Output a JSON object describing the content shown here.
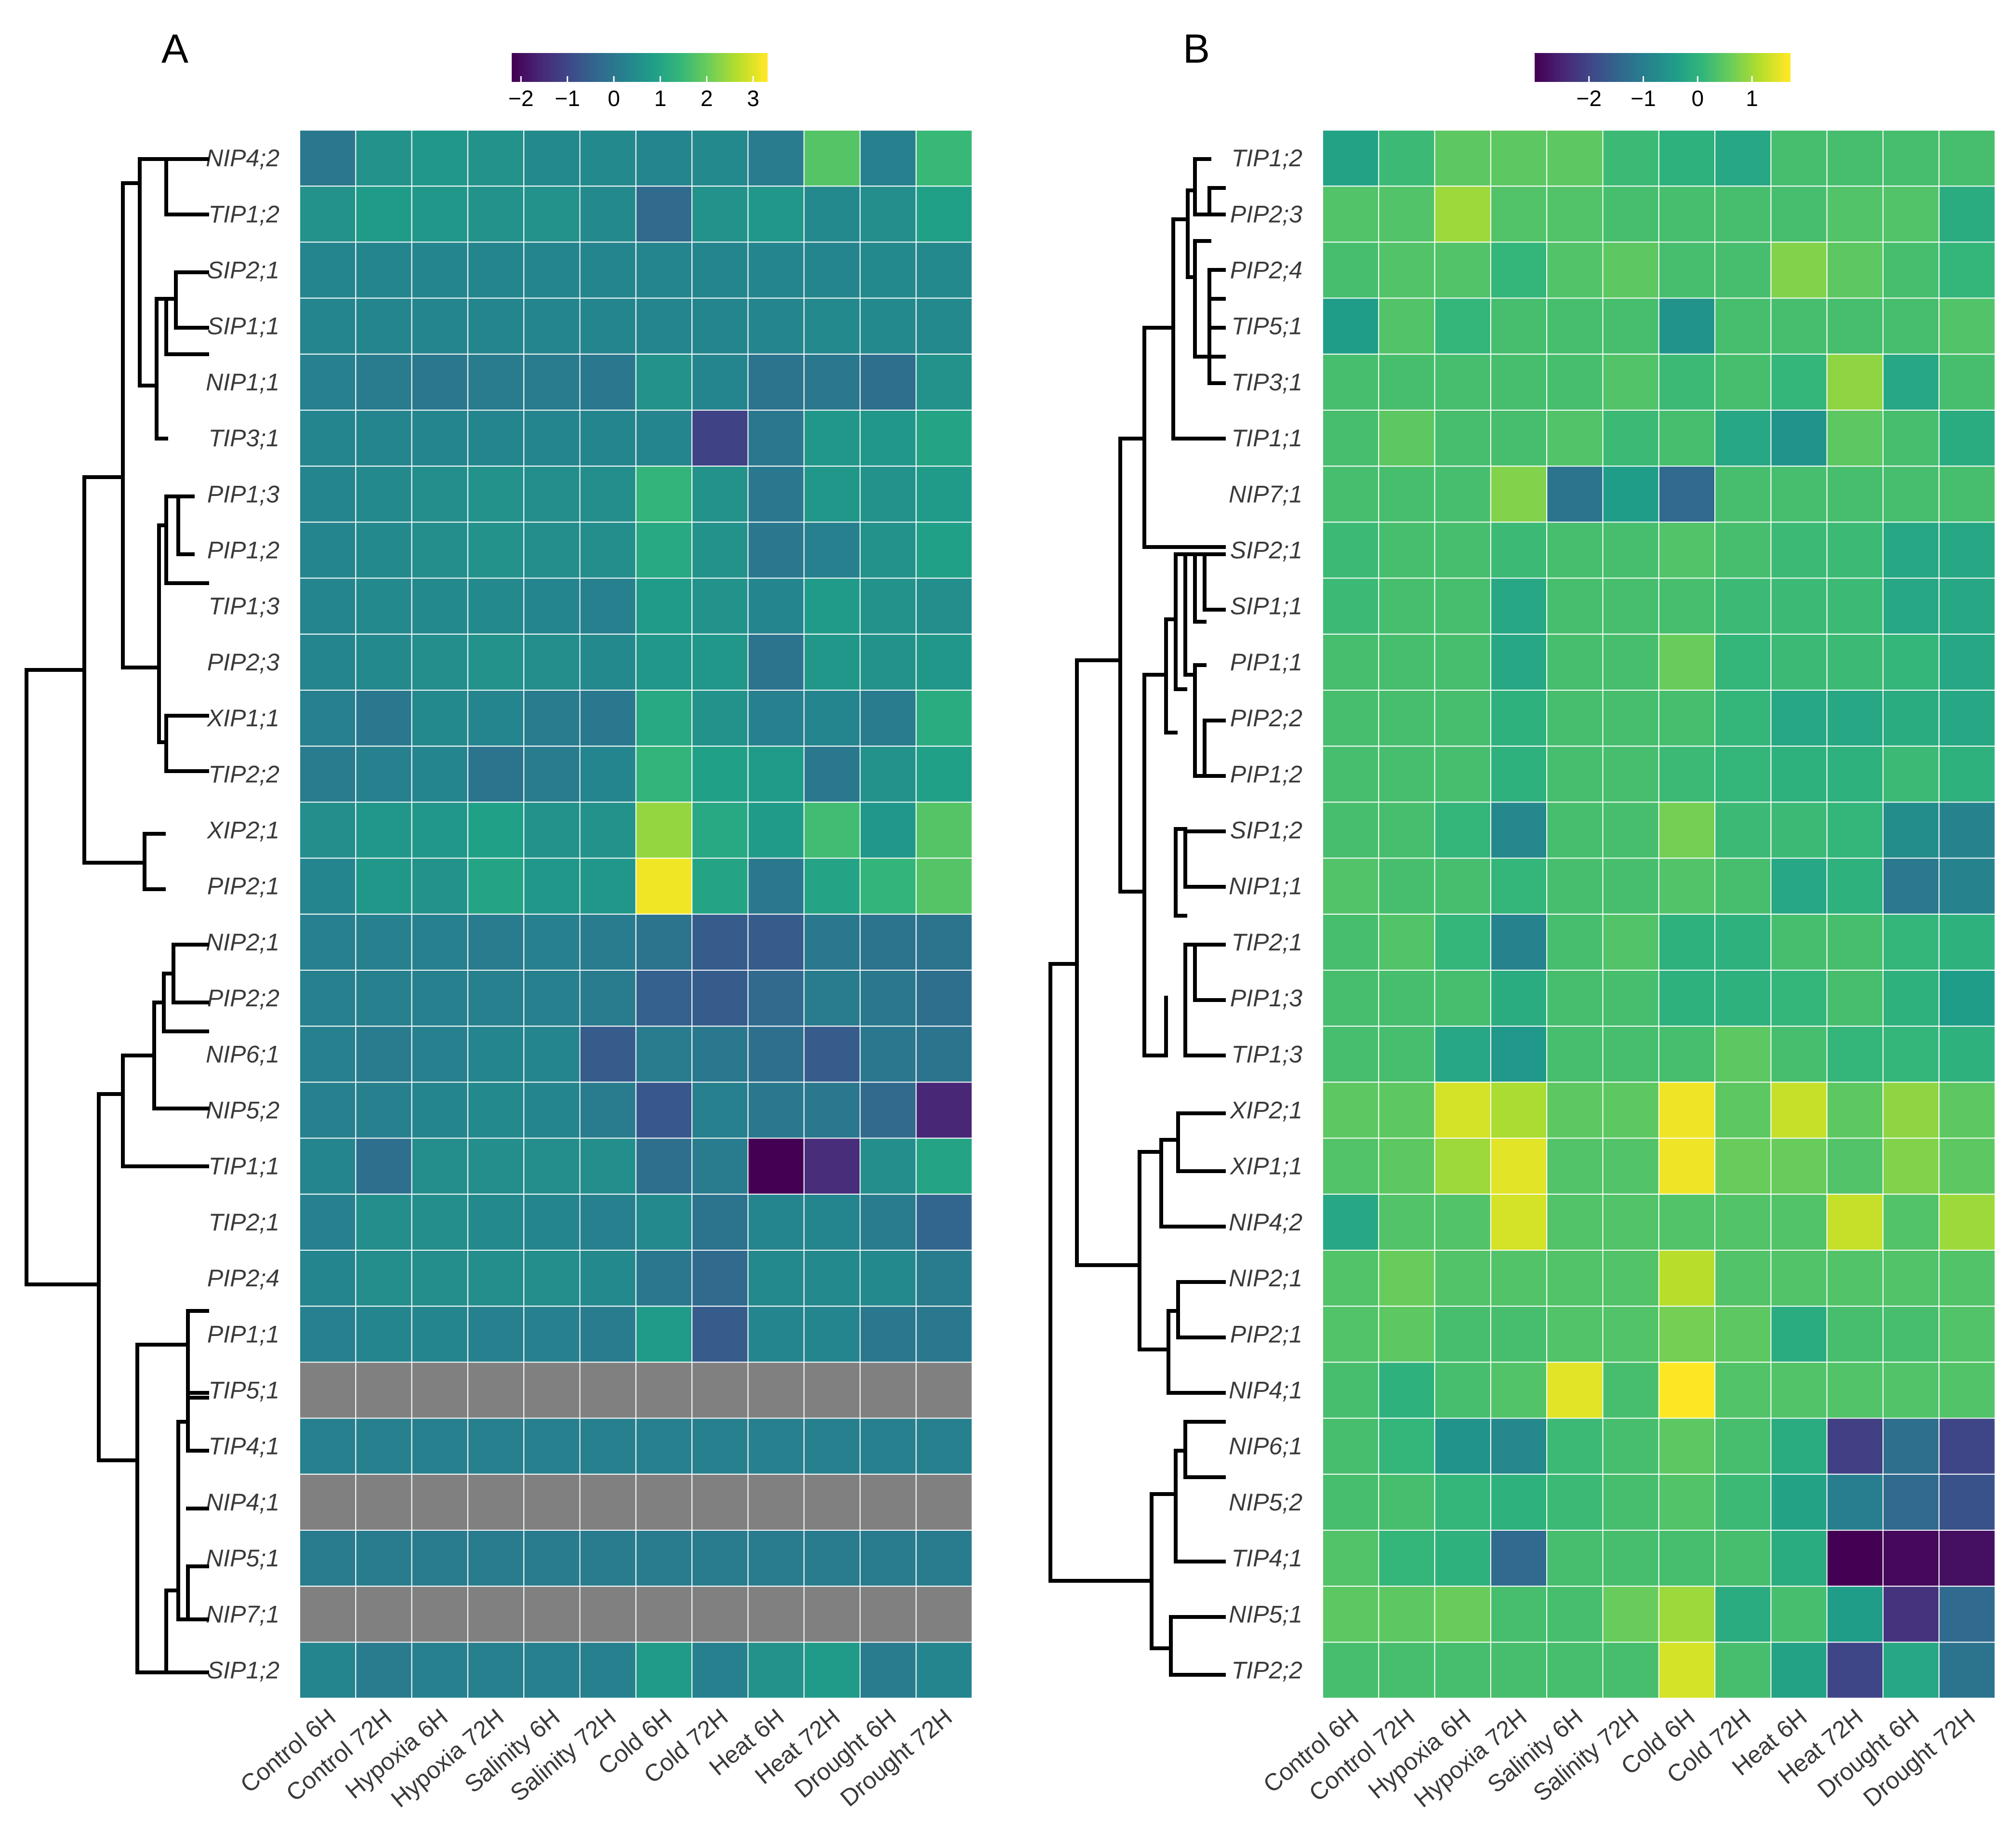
{
  "chart_data": [
    {
      "type": "heatmap",
      "panel_label": "A",
      "colorbar": {
        "range": [
          -2.2,
          3.3
        ],
        "ticks": [
          -2,
          -1,
          0,
          1,
          2,
          3
        ],
        "tick_labels": [
          "−2",
          "−1",
          "0",
          "1",
          "2",
          "3"
        ]
      },
      "conditions": [
        "Control 6H",
        "Control 72H",
        "Hypoxia 6H",
        "Hypoxia 72H",
        "Salinity 6H",
        "Salinity 72H",
        "Cold 6H",
        "Cold 72H",
        "Heat 6H",
        "Heat 72H",
        "Drought 6H",
        "Drought 72H"
      ],
      "genes": [
        "NIP4;2",
        "TIP1;2",
        "SIP2;1",
        "SIP1;1",
        "NIP1;1",
        "TIP3;1",
        "PIP1;3",
        "PIP1;2",
        "TIP1;3",
        "PIP2;3",
        "XIP1;1",
        "TIP2;2",
        "XIP2;1",
        "PIP2;1",
        "NIP2;1",
        "PIP2;2",
        "NIP6;1",
        "NIP5;2",
        "TIP1;1",
        "TIP2;1",
        "PIP2;4",
        "PIP1;1",
        "TIP5;1",
        "TIP4;1",
        "NIP4;1",
        "NIP5;1",
        "NIP7;1",
        "SIP1;2"
      ],
      "values": [
        [
          0.0,
          0.6,
          0.7,
          0.6,
          0.4,
          0.4,
          0.3,
          0.4,
          0.1,
          1.8,
          0.2,
          1.5
        ],
        [
          0.6,
          0.8,
          0.7,
          0.6,
          0.6,
          0.4,
          -0.3,
          0.6,
          0.7,
          0.4,
          0.5,
          0.9
        ],
        [
          0.3,
          0.3,
          0.3,
          0.3,
          0.3,
          0.3,
          0.3,
          0.3,
          0.3,
          0.3,
          0.4,
          0.4
        ],
        [
          0.3,
          0.3,
          0.3,
          0.3,
          0.3,
          0.3,
          0.3,
          0.3,
          0.3,
          0.4,
          0.4,
          0.4
        ],
        [
          0.2,
          0.1,
          0.0,
          0.1,
          0.1,
          0.0,
          0.6,
          0.3,
          -0.1,
          0.0,
          -0.2,
          0.6
        ],
        [
          0.3,
          0.3,
          0.3,
          0.3,
          0.3,
          0.3,
          0.3,
          -1.1,
          0.0,
          0.7,
          0.7,
          1.0
        ],
        [
          0.3,
          0.4,
          0.5,
          0.6,
          0.5,
          0.5,
          1.4,
          0.6,
          0.0,
          0.7,
          0.6,
          0.8
        ],
        [
          0.3,
          0.4,
          0.5,
          0.6,
          0.5,
          0.5,
          1.1,
          0.6,
          0.0,
          0.2,
          0.6,
          0.9
        ],
        [
          0.3,
          0.4,
          0.4,
          0.4,
          0.3,
          0.2,
          0.8,
          0.6,
          0.3,
          0.8,
          0.6,
          0.5
        ],
        [
          0.3,
          0.4,
          0.5,
          0.6,
          0.5,
          0.4,
          0.7,
          0.7,
          -0.1,
          0.7,
          0.6,
          0.7
        ],
        [
          0.2,
          0.0,
          0.4,
          0.3,
          0.1,
          0.0,
          1.1,
          0.6,
          0.2,
          0.3,
          0.1,
          1.2
        ],
        [
          0.1,
          0.2,
          0.3,
          -0.1,
          0.1,
          0.3,
          1.4,
          0.9,
          0.8,
          0.0,
          0.6,
          0.9
        ],
        [
          0.5,
          0.7,
          0.7,
          0.9,
          0.6,
          0.6,
          2.4,
          1.1,
          0.8,
          1.6,
          0.7,
          1.8
        ],
        [
          0.3,
          0.7,
          0.6,
          1.0,
          0.7,
          0.7,
          3.2,
          1.0,
          0.0,
          1.0,
          1.4,
          1.8
        ],
        [
          0.2,
          0.2,
          0.2,
          0.1,
          0.2,
          0.1,
          -0.1,
          -0.6,
          -0.6,
          0.0,
          -0.1,
          -0.1
        ],
        [
          0.2,
          0.2,
          0.2,
          0.2,
          0.2,
          0.1,
          -0.5,
          -0.6,
          -0.3,
          0.1,
          0.0,
          -0.2
        ],
        [
          0.2,
          0.1,
          0.2,
          0.3,
          0.3,
          -0.6,
          0.1,
          0.0,
          -0.2,
          -0.6,
          0.0,
          -0.1
        ],
        [
          0.2,
          0.2,
          0.3,
          0.4,
          0.3,
          0.1,
          -0.7,
          0.2,
          0.0,
          0.0,
          -0.3,
          -1.6
        ],
        [
          0.3,
          -0.2,
          0.5,
          0.5,
          0.5,
          0.5,
          -0.2,
          0.1,
          -2.2,
          -1.5,
          0.5,
          1.0
        ],
        [
          0.2,
          0.5,
          0.5,
          0.4,
          0.3,
          0.2,
          0.4,
          -0.1,
          0.3,
          0.3,
          0.1,
          -0.4
        ],
        [
          0.3,
          0.5,
          0.5,
          0.5,
          0.5,
          0.4,
          0.0,
          -0.3,
          0.4,
          0.4,
          0.4,
          0.1
        ],
        [
          0.2,
          0.3,
          0.3,
          0.2,
          0.2,
          0.1,
          0.8,
          -0.6,
          0.3,
          0.3,
          0.0,
          0.0
        ],
        [
          null,
          null,
          null,
          null,
          null,
          null,
          null,
          null,
          null,
          null,
          null,
          null
        ],
        [
          0.2,
          0.2,
          0.2,
          0.2,
          0.2,
          0.2,
          0.2,
          0.2,
          0.2,
          0.2,
          0.2,
          0.2
        ],
        [
          null,
          null,
          null,
          null,
          null,
          null,
          null,
          null,
          null,
          null,
          null,
          null
        ],
        [
          0.1,
          0.1,
          0.1,
          0.1,
          0.1,
          0.1,
          0.1,
          0.1,
          0.1,
          0.1,
          0.1,
          0.1
        ],
        [
          null,
          null,
          null,
          null,
          null,
          null,
          null,
          null,
          null,
          null,
          null,
          null
        ],
        [
          0.3,
          0.1,
          0.2,
          0.2,
          0.2,
          0.2,
          0.8,
          0.2,
          0.6,
          0.8,
          0.1,
          0.3
        ]
      ]
    },
    {
      "type": "heatmap",
      "panel_label": "B",
      "colorbar": {
        "range": [
          -3.0,
          1.7
        ],
        "ticks": [
          -2,
          -1,
          0,
          1
        ],
        "tick_labels": [
          "−2",
          "−1",
          "0",
          "1"
        ]
      },
      "conditions": [
        "Control 6H",
        "Control 72H",
        "Hypoxia 6H",
        "Hypoxia 72H",
        "Salinity 6H",
        "Salinity 72H",
        "Cold 6H",
        "Cold 72H",
        "Heat 6H",
        "Heat 72H",
        "Drought 6H",
        "Drought 72H"
      ],
      "genes": [
        "TIP1;2",
        "PIP2;3",
        "PIP2;4",
        "TIP5;1",
        "TIP3;1",
        "TIP1;1",
        "NIP7;1",
        "SIP2;1",
        "SIP1;1",
        "PIP1;1",
        "PIP2;2",
        "PIP1;2",
        "SIP1;2",
        "NIP1;1",
        "TIP2;1",
        "PIP1;3",
        "TIP1;3",
        "XIP2;1",
        "XIP1;1",
        "NIP4;2",
        "NIP2;1",
        "PIP2;1",
        "NIP4;1",
        "NIP6;1",
        "NIP5;2",
        "TIP4;1",
        "NIP5;1",
        "TIP2;2"
      ],
      "values": [
        [
          -0.3,
          0.2,
          0.5,
          0.5,
          0.5,
          0.2,
          0.0,
          -0.2,
          0.3,
          0.3,
          0.3,
          0.3
        ],
        [
          0.4,
          0.4,
          1.0,
          0.4,
          0.4,
          0.3,
          0.3,
          0.3,
          0.3,
          0.4,
          0.4,
          -0.1
        ],
        [
          0.3,
          0.4,
          0.4,
          0.1,
          0.4,
          0.5,
          0.3,
          0.3,
          0.8,
          0.5,
          0.3,
          0.1
        ],
        [
          -0.4,
          0.4,
          0.1,
          0.3,
          0.3,
          0.3,
          -0.6,
          0.3,
          0.3,
          0.3,
          0.3,
          0.4
        ],
        [
          0.3,
          0.3,
          0.3,
          0.3,
          0.3,
          0.4,
          0.2,
          0.3,
          0.1,
          0.9,
          -0.2,
          0.3
        ],
        [
          0.3,
          0.5,
          0.3,
          0.3,
          0.4,
          0.2,
          0.3,
          -0.2,
          -0.6,
          0.5,
          0.3,
          -0.1
        ],
        [
          0.3,
          0.3,
          0.3,
          0.8,
          -1.2,
          -0.4,
          -1.4,
          0.3,
          0.3,
          0.3,
          0.3,
          0.3
        ],
        [
          0.2,
          0.3,
          0.3,
          0.2,
          0.3,
          0.3,
          0.4,
          0.3,
          0.2,
          0.2,
          -0.2,
          -0.2
        ],
        [
          0.2,
          0.3,
          0.3,
          -0.2,
          0.3,
          0.3,
          0.3,
          0.2,
          0.2,
          0.2,
          -0.2,
          -0.2
        ],
        [
          0.3,
          0.3,
          0.3,
          -0.2,
          0.3,
          0.3,
          0.6,
          0.1,
          0.2,
          0.2,
          0.1,
          -0.2
        ],
        [
          0.3,
          0.3,
          0.3,
          0.0,
          0.3,
          0.3,
          0.3,
          0.1,
          -0.2,
          -0.2,
          -0.1,
          -0.2
        ],
        [
          0.3,
          0.3,
          0.3,
          0.0,
          0.3,
          0.3,
          0.2,
          0.1,
          0.0,
          0.0,
          0.2,
          0.0
        ],
        [
          0.3,
          0.3,
          0.1,
          -0.8,
          0.3,
          0.3,
          0.7,
          0.2,
          0.2,
          0.1,
          -0.7,
          -0.9
        ],
        [
          0.4,
          0.3,
          0.3,
          0.1,
          0.3,
          0.3,
          0.4,
          0.3,
          -0.2,
          0.0,
          -1.1,
          -0.9
        ],
        [
          0.3,
          0.4,
          0.1,
          -0.9,
          0.3,
          0.4,
          0.0,
          0.0,
          0.3,
          0.3,
          0.1,
          0.0
        ],
        [
          0.3,
          0.3,
          0.3,
          -0.1,
          0.3,
          0.3,
          0.0,
          0.0,
          0.1,
          0.3,
          0.0,
          -0.4
        ],
        [
          0.3,
          0.3,
          -0.2,
          -0.5,
          0.3,
          0.3,
          0.3,
          0.5,
          0.3,
          0.1,
          0.1,
          0.0
        ],
        [
          0.5,
          0.5,
          1.4,
          1.1,
          0.5,
          0.5,
          1.6,
          0.5,
          1.3,
          0.5,
          0.9,
          0.5
        ],
        [
          0.4,
          0.5,
          1.0,
          1.5,
          0.4,
          0.4,
          1.6,
          0.6,
          0.6,
          0.4,
          0.8,
          0.5
        ],
        [
          -0.2,
          0.4,
          0.4,
          1.4,
          0.4,
          0.4,
          0.4,
          0.4,
          0.4,
          1.3,
          0.4,
          1.0
        ],
        [
          0.4,
          0.6,
          0.4,
          0.4,
          0.4,
          0.4,
          1.2,
          0.4,
          0.4,
          0.4,
          0.4,
          0.4
        ],
        [
          0.4,
          0.5,
          0.3,
          0.3,
          0.4,
          0.4,
          0.7,
          0.5,
          -0.1,
          0.3,
          0.3,
          0.4
        ],
        [
          0.3,
          0.0,
          0.3,
          0.4,
          1.5,
          0.3,
          1.7,
          0.4,
          0.4,
          0.4,
          0.4,
          0.4
        ],
        [
          0.3,
          0.1,
          -0.6,
          -0.8,
          0.2,
          0.3,
          0.5,
          0.3,
          -0.1,
          -2.1,
          -1.3,
          -2.0
        ],
        [
          0.3,
          0.3,
          0.1,
          0.0,
          0.2,
          0.3,
          0.4,
          0.2,
          -0.3,
          -1.0,
          -1.4,
          -1.8
        ],
        [
          0.4,
          0.1,
          0.0,
          -1.4,
          0.3,
          0.3,
          0.3,
          0.3,
          -0.1,
          -3.0,
          -2.9,
          -2.8
        ],
        [
          0.5,
          0.5,
          0.6,
          0.3,
          0.3,
          0.6,
          1.0,
          -0.1,
          0.3,
          -0.4,
          -2.3,
          -1.4
        ],
        [
          0.3,
          0.3,
          0.3,
          0.3,
          0.3,
          0.3,
          1.4,
          0.3,
          -0.3,
          -2.0,
          -0.2,
          -1.2
        ]
      ]
    }
  ]
}
